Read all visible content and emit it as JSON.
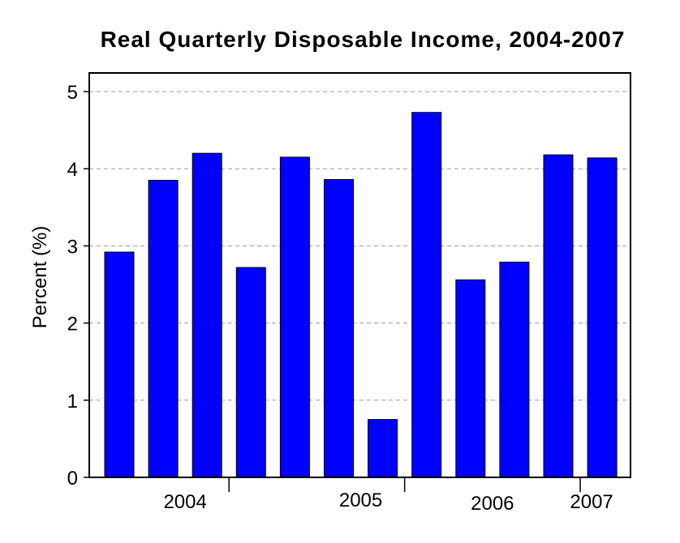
{
  "chart_data": {
    "type": "bar",
    "title": "Real Quarterly Disposable Income, 2004-2007",
    "xlabel": "",
    "ylabel": "Percent (%)",
    "ylim": [
      0,
      5
    ],
    "yticks": [
      "0",
      "1",
      "2",
      "3",
      "4",
      "5"
    ],
    "grid": true,
    "bar_color": "#0000ff",
    "year_labels": [
      {
        "label": "2004",
        "center_index": 1.5
      },
      {
        "label": "2005",
        "center_index": 5.5
      },
      {
        "label": "2006",
        "center_index": 8.5
      },
      {
        "label": "2007",
        "center_index": 11
      }
    ],
    "year_separators": [
      3,
      7,
      11
    ],
    "values": [
      2.92,
      3.85,
      4.2,
      2.72,
      4.15,
      3.86,
      0.75,
      4.73,
      2.56,
      2.79,
      4.18,
      4.14
    ]
  }
}
